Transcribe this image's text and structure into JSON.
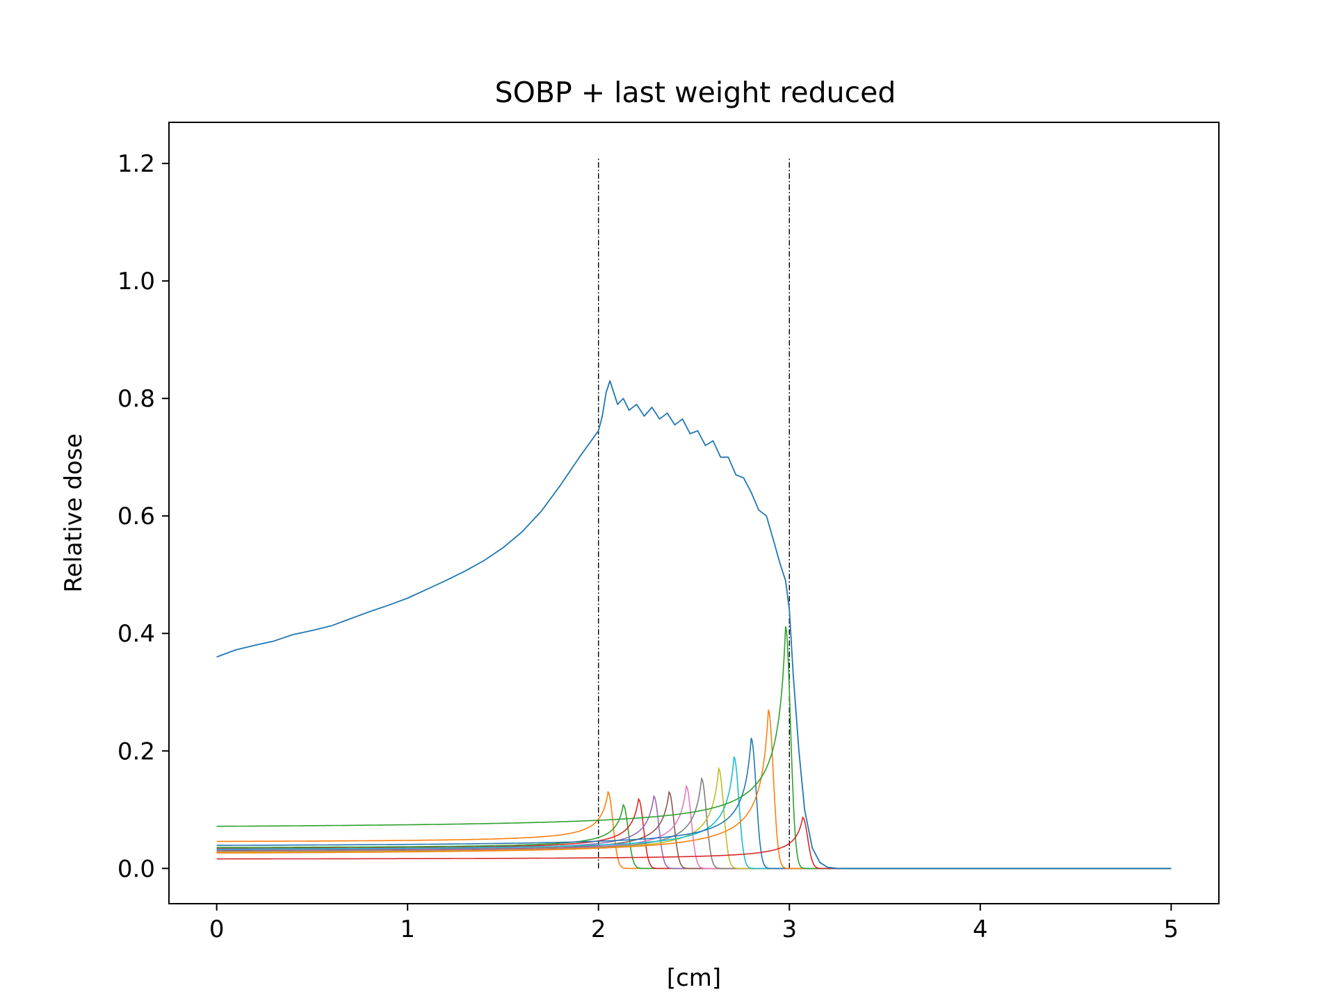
{
  "chart_data": {
    "type": "line",
    "title": "SOBP + last weight reduced",
    "xlabel": "[cm]",
    "ylabel": "Relative dose",
    "xlim": [
      -0.25,
      5.25
    ],
    "ylim": [
      -0.06,
      1.27
    ],
    "xticks": [
      0,
      1,
      2,
      3,
      4,
      5
    ],
    "yticks": [
      0.0,
      0.2,
      0.4,
      0.6,
      0.8,
      1.0,
      1.2
    ],
    "ytick_labels": [
      "0.0",
      "0.2",
      "0.4",
      "0.6",
      "0.8",
      "1.0",
      "1.2"
    ],
    "grid": false,
    "vlines": [
      {
        "x": 2,
        "ymin": 0,
        "ymax": 1.21,
        "color": "#000000",
        "style": "dashdot"
      },
      {
        "x": 3,
        "ymin": 0,
        "ymax": 1.21,
        "color": "#000000",
        "style": "dashdot"
      }
    ],
    "sobp": {
      "color": "#1f77b4",
      "x": [
        0,
        0.1,
        0.2,
        0.3,
        0.4,
        0.5,
        0.6,
        0.7,
        0.8,
        0.9,
        1.0,
        1.1,
        1.2,
        1.3,
        1.4,
        1.5,
        1.6,
        1.7,
        1.8,
        1.9,
        2.0,
        2.02,
        2.04,
        2.06,
        2.08,
        2.1,
        2.13,
        2.16,
        2.2,
        2.24,
        2.28,
        2.32,
        2.36,
        2.4,
        2.44,
        2.48,
        2.52,
        2.56,
        2.6,
        2.64,
        2.68,
        2.72,
        2.76,
        2.8,
        2.84,
        2.88,
        2.92,
        2.95,
        2.98,
        3.0,
        3.02,
        3.05,
        3.08,
        3.12,
        3.16,
        3.2,
        3.25,
        3.3,
        3.5,
        4.0,
        4.5,
        5.0
      ],
      "y": [
        0.36,
        0.372,
        0.38,
        0.387,
        0.398,
        0.405,
        0.413,
        0.425,
        0.437,
        0.448,
        0.46,
        0.475,
        0.49,
        0.506,
        0.524,
        0.546,
        0.573,
        0.608,
        0.652,
        0.7,
        0.745,
        0.77,
        0.81,
        0.83,
        0.81,
        0.79,
        0.8,
        0.78,
        0.79,
        0.77,
        0.785,
        0.765,
        0.775,
        0.755,
        0.765,
        0.74,
        0.745,
        0.72,
        0.728,
        0.7,
        0.7,
        0.67,
        0.665,
        0.64,
        0.61,
        0.6,
        0.555,
        0.52,
        0.49,
        0.44,
        0.33,
        0.2,
        0.1,
        0.035,
        0.01,
        0.002,
        0.0,
        0.0,
        0.0,
        0.0,
        0.0,
        0.0
      ]
    },
    "series": [
      {
        "color": "#ff7f0e",
        "peak_x": 2.05,
        "peak_y": 0.13,
        "entrance_y": 0.044,
        "width": 0.04
      },
      {
        "color": "#2ca02c",
        "peak_x": 2.13,
        "peak_y": 0.108,
        "entrance_y": 0.034,
        "width": 0.04
      },
      {
        "color": "#d62728",
        "peak_x": 2.21,
        "peak_y": 0.118,
        "entrance_y": 0.032,
        "width": 0.04
      },
      {
        "color": "#9467bd",
        "peak_x": 2.29,
        "peak_y": 0.123,
        "entrance_y": 0.03,
        "width": 0.04
      },
      {
        "color": "#8c564b",
        "peak_x": 2.37,
        "peak_y": 0.13,
        "entrance_y": 0.028,
        "width": 0.04
      },
      {
        "color": "#e377c2",
        "peak_x": 2.46,
        "peak_y": 0.14,
        "entrance_y": 0.027,
        "width": 0.04
      },
      {
        "color": "#7f7f7f",
        "peak_x": 2.54,
        "peak_y": 0.153,
        "entrance_y": 0.026,
        "width": 0.04
      },
      {
        "color": "#bcbd22",
        "peak_x": 2.63,
        "peak_y": 0.17,
        "entrance_y": 0.025,
        "width": 0.04
      },
      {
        "color": "#17becf",
        "peak_x": 2.71,
        "peak_y": 0.19,
        "entrance_y": 0.03,
        "width": 0.04
      },
      {
        "color": "#1f77b4",
        "peak_x": 2.8,
        "peak_y": 0.222,
        "entrance_y": 0.036,
        "width": 0.04
      },
      {
        "color": "#ff7f0e",
        "peak_x": 2.89,
        "peak_y": 0.27,
        "entrance_y": 0.022,
        "width": 0.04
      },
      {
        "color": "#2ca02c",
        "peak_x": 2.98,
        "peak_y": 0.412,
        "entrance_y": 0.066,
        "width": 0.04
      },
      {
        "color": "#d62728",
        "peak_x": 3.07,
        "peak_y": 0.087,
        "entrance_y": 0.015,
        "width": 0.04
      }
    ]
  }
}
